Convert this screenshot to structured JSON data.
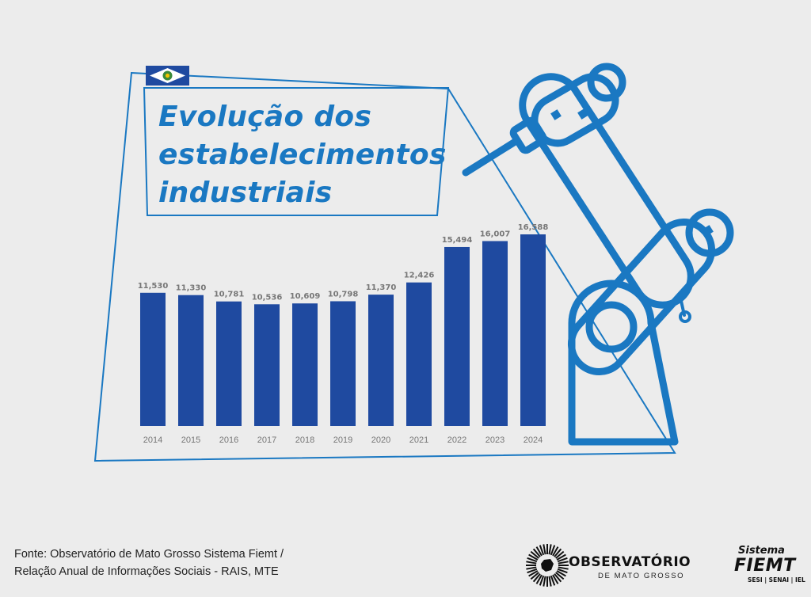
{
  "title_lines": [
    "Evolução dos",
    "estabelecimentos",
    "industriais"
  ],
  "footer": {
    "source_line1": "Fonte: Observatório de Mato Grosso Sistema Fiemt /",
    "source_line2": "Relação Anual de Informações Sociais - RAIS, MTE"
  },
  "logos": {
    "observatorio_name": "OBSERVATÓRIO",
    "observatorio_sub": "DE MATO GROSSO",
    "fiemt_top": "Sistema",
    "fiemt_name": "FIEMT",
    "fiemt_sub": "SESI | SENAI | IEL"
  },
  "colors": {
    "bar": "#1f4aa0",
    "accent": "#1a78c2",
    "label": "#777777",
    "background": "#ececec"
  },
  "icons": [
    "mato-grosso-flag-icon",
    "robotic-arm-icon",
    "observatorio-logo-icon",
    "fiemt-logo-icon"
  ],
  "chart_data": {
    "type": "bar",
    "title": "Evolução dos estabelecimentos industriais",
    "categories": [
      "2014",
      "2015",
      "2016",
      "2017",
      "2018",
      "2019",
      "2020",
      "2021",
      "2022",
      "2023",
      "2024"
    ],
    "values": [
      11530,
      11330,
      10781,
      10536,
      10609,
      10798,
      11370,
      12426,
      15494,
      16007,
      16588
    ],
    "value_labels": [
      "11,530",
      "11,330",
      "10,781",
      "10,536",
      "10,609",
      "10,798",
      "11,370",
      "12,426",
      "15,494",
      "16,007",
      "16,588"
    ],
    "xlabel": "",
    "ylabel": "",
    "ylim": [
      0,
      16588
    ],
    "grid": false,
    "y_axis_shown": false
  }
}
